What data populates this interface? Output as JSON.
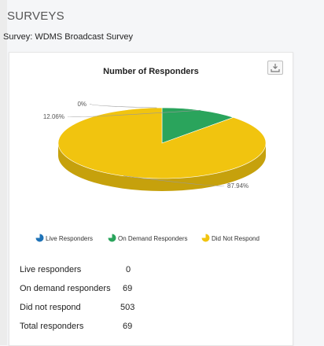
{
  "page": {
    "heading": "SURVEYS",
    "survey_name": "Survey: WDMS Broadcast Survey"
  },
  "chart_data": {
    "type": "pie",
    "title": "Number of Responders",
    "slices": [
      {
        "name": "Live Responders",
        "value": 0,
        "label": "0%",
        "color": "#1f73b7"
      },
      {
        "name": "On Demand Responders",
        "value": 69,
        "label": "12.06%",
        "color": "#2aa45c"
      },
      {
        "name": "Did Not Respond",
        "value": 503,
        "label": "87.94%",
        "color": "#f1c40f"
      }
    ],
    "legend_placement": "bottom"
  },
  "toolbar": {
    "export_icon": "download-icon"
  },
  "stats": [
    {
      "label": "Live responders",
      "value": "0"
    },
    {
      "label": "On demand responders",
      "value": "69"
    },
    {
      "label": "Did not respond",
      "value": "503"
    },
    {
      "label": "Total responders",
      "value": "69"
    }
  ]
}
